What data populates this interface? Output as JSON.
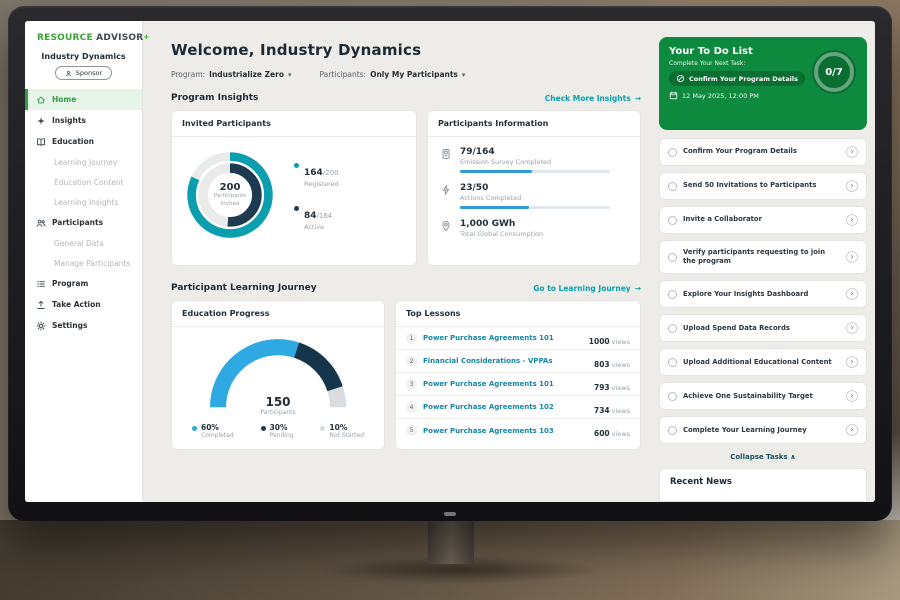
{
  "app": {
    "logo_part1": "RESOURCE",
    "logo_part2": "ADVISOR",
    "logo_plus": "+",
    "org_name": "Industry Dynamics",
    "org_badge": "Sponsor"
  },
  "icons": {
    "chevron_down": "▾",
    "arrow_right": "→",
    "chevron_right": "›",
    "collapse_up": "∧"
  },
  "colors": {
    "brand_green": "#0e8a3e",
    "accent_teal": "#0a9fae",
    "chart_teal": "#0b9eae",
    "chart_navy": "#1e3a50",
    "chart_blue": "#2fa9e1",
    "progress_blue": "#2e9bd6"
  },
  "sidebar": {
    "items": [
      {
        "label": "Home",
        "icon": "home",
        "active": true
      },
      {
        "label": "Insights",
        "icon": "insights"
      },
      {
        "label": "Education",
        "icon": "education"
      },
      {
        "label": "Learning Journey",
        "sub": true
      },
      {
        "label": "Education Content",
        "sub": true
      },
      {
        "label": "Learning Insights",
        "sub": true
      },
      {
        "label": "Participants",
        "icon": "participants"
      },
      {
        "label": "General Data",
        "sub": true
      },
      {
        "label": "Manage Participants",
        "sub": true
      },
      {
        "label": "Program",
        "icon": "program"
      },
      {
        "label": "Take Action",
        "icon": "take-action"
      },
      {
        "label": "Settings",
        "icon": "settings"
      }
    ]
  },
  "header": {
    "title": "Welcome, Industry Dynamics",
    "filters": {
      "program_label": "Program:",
      "program_value": "Industrialize Zero",
      "participants_label": "Participants:",
      "participants_value": "Only My Participants"
    }
  },
  "sections": {
    "program_insights": {
      "title": "Program Insights",
      "link": "Check More Insights"
    },
    "learning_journey": {
      "title": "Participant Learning Journey",
      "link": "Go to Learning Journey"
    }
  },
  "invited_card": {
    "title": "Invited Participants",
    "center_value": "200",
    "center_label": "Participants Invited",
    "legend": [
      {
        "big": "164",
        "small": "/200",
        "label": "Registered"
      },
      {
        "big": "84",
        "small": "/164",
        "label": "Active"
      }
    ]
  },
  "info_card": {
    "title": "Participants Information",
    "rows": [
      {
        "value": "79/164",
        "label": "Emission Survey Completed",
        "progress": 0.48
      },
      {
        "value": "23/50",
        "label": "Actions Completed",
        "progress": 0.46
      },
      {
        "value": "1,000 GWh",
        "label": "Total Global Consumption"
      }
    ]
  },
  "education_card": {
    "title": "Education Progress",
    "center_value": "150",
    "center_label": "Participants",
    "legend": [
      {
        "pct": "60%",
        "label": "Completed"
      },
      {
        "pct": "30%",
        "label": "Pending"
      },
      {
        "pct": "10%",
        "label": "Not Started"
      }
    ]
  },
  "lessons_card": {
    "title": "Top Lessons",
    "views_suffix": "views",
    "rows": [
      {
        "rank": "1",
        "title": "Power Purchase Agreements 101",
        "views": "1000"
      },
      {
        "rank": "2",
        "title": "Financial Considerations - VPPAs",
        "views": "803"
      },
      {
        "rank": "3",
        "title": "Power Purchase Agreements 101",
        "views": "793"
      },
      {
        "rank": "4",
        "title": "Power Purchase Agreements 102",
        "views": "734"
      },
      {
        "rank": "5",
        "title": "Power Purchase Agreements 103",
        "views": "600"
      }
    ]
  },
  "todo": {
    "title": "Your To Do List",
    "subtitle": "Complete Your Next Task:",
    "next_task": "Confirm Your Program Details",
    "datetime": "12 May 2025, 12:00 PM",
    "ring_label": "0/7",
    "tasks": [
      "Confirm Your Program Details",
      "Send 50 Invitations to Participants",
      "Invite a Collaborator",
      "Verify participants requesting to join the program",
      "Explore Your Insights Dashboard",
      "Upload Spend Data Records",
      "Upload Additional Educational Content",
      "Achieve One Sustainability Target",
      "Complete Your Learning Journey"
    ],
    "collapse": "Collapse Tasks"
  },
  "news": {
    "title": "Recent News"
  },
  "chart_data": [
    {
      "id": "invited_donut",
      "type": "donut",
      "title": "Invited Participants",
      "center": "200 Participants Invited",
      "rings": [
        {
          "name": "Registered",
          "value": 164,
          "total": 200,
          "color": "#0b9eae"
        },
        {
          "name": "Active",
          "value": 84,
          "total": 164,
          "color": "#1e3a50"
        }
      ]
    },
    {
      "id": "education_gauge",
      "type": "gauge",
      "title": "Education Progress",
      "center": "150 Participants",
      "segments": [
        {
          "name": "Completed",
          "pct": 60,
          "color": "#2fa9e1"
        },
        {
          "name": "Pending",
          "pct": 30,
          "color": "#16344a"
        },
        {
          "name": "Not Started",
          "pct": 10,
          "color": "#d9dde0"
        }
      ]
    },
    {
      "id": "todo_ring",
      "type": "donut",
      "done": 0,
      "total": 7
    },
    {
      "id": "survey_bar",
      "type": "bar",
      "value": 79,
      "total": 164
    },
    {
      "id": "actions_bar",
      "type": "bar",
      "value": 23,
      "total": 50
    }
  ]
}
